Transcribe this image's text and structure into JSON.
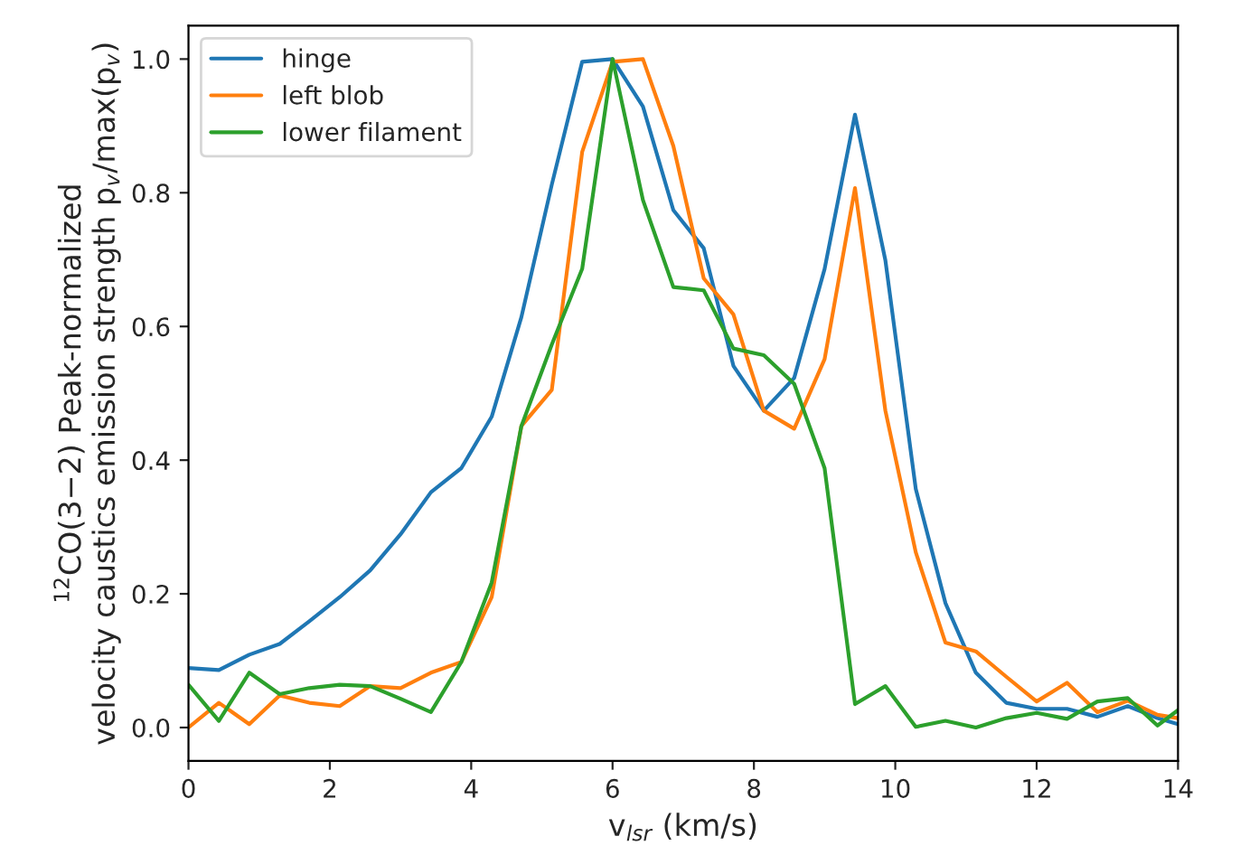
{
  "chart_data": {
    "type": "line",
    "xlabel": "v$_{lsr}$ (km/s)",
    "ylabel": "$^{12}$CO(3−2) Peak-normalized\nvelocity caustics emission strength p$_{v}$/max(p$_{v}$)",
    "x": [
      0,
      0.43,
      0.86,
      1.29,
      1.71,
      2.14,
      2.57,
      3,
      3.43,
      3.86,
      4.29,
      4.71,
      5.14,
      5.57,
      6,
      6.43,
      6.86,
      7.29,
      7.71,
      8.14,
      8.57,
      9,
      9.43,
      9.86,
      10.29,
      10.71,
      11.14,
      11.57,
      12,
      12.43,
      12.86,
      13.29,
      13.71,
      14
    ],
    "series": [
      {
        "name": "hinge",
        "color": "#1f77b4",
        "values": [
          0.089,
          0.086,
          0.109,
          0.125,
          0.159,
          0.195,
          0.235,
          0.289,
          0.352,
          0.388,
          0.465,
          0.614,
          0.812,
          0.996,
          1.0,
          0.929,
          0.774,
          0.717,
          0.541,
          0.474,
          0.523,
          0.686,
          0.917,
          0.699,
          0.357,
          0.186,
          0.082,
          0.037,
          0.028,
          0.028,
          0.016,
          0.032,
          0.014,
          0.005
        ]
      },
      {
        "name": "left blob",
        "color": "#ff7f0e",
        "values": [
          0.0,
          0.037,
          0.005,
          0.048,
          0.037,
          0.032,
          0.062,
          0.059,
          0.082,
          0.098,
          0.195,
          0.451,
          0.505,
          0.861,
          0.996,
          1.0,
          0.87,
          0.672,
          0.618,
          0.474,
          0.447,
          0.551,
          0.807,
          0.474,
          0.262,
          0.127,
          0.114,
          0.076,
          0.039,
          0.067,
          0.023,
          0.04,
          0.019,
          0.014
        ]
      },
      {
        "name": "lower filament",
        "color": "#2ca02c",
        "values": [
          0.064,
          0.01,
          0.082,
          0.05,
          0.059,
          0.064,
          0.062,
          0.043,
          0.023,
          0.098,
          0.217,
          0.451,
          0.573,
          0.686,
          1.0,
          0.789,
          0.659,
          0.654,
          0.567,
          0.557,
          0.514,
          0.388,
          0.035,
          0.062,
          0.001,
          0.01,
          0.0,
          0.014,
          0.022,
          0.013,
          0.039,
          0.044,
          0.003,
          0.026
        ]
      }
    ],
    "xlim": [
      0,
      14
    ],
    "xticks": [
      0,
      2,
      4,
      6,
      8,
      10,
      12,
      14
    ],
    "ylim": [
      -0.05,
      1.05
    ],
    "yticks": [
      {
        "value": 0,
        "label": "0.0"
      },
      {
        "value": 0.2,
        "label": "0.2"
      },
      {
        "value": 0.4,
        "label": "0.4"
      },
      {
        "value": 0.6,
        "label": "0.6"
      },
      {
        "value": 0.8,
        "label": "0.8"
      },
      {
        "value": 1.0,
        "label": "1.0"
      }
    ],
    "legend": "top left",
    "grid": false,
    "marker": "none",
    "line_style": "solid"
  }
}
